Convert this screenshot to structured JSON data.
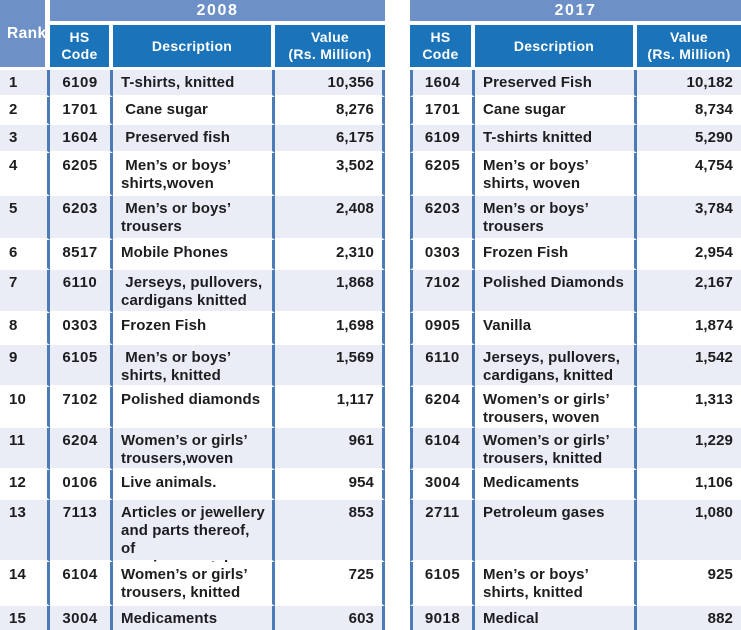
{
  "rank_header": "Rank",
  "ranks": [
    "1",
    "2",
    "3",
    "4",
    "5",
    "6",
    "7",
    "8",
    "9",
    "10",
    "11",
    "12",
    "13",
    "14",
    "15"
  ],
  "colors": {
    "year_band": "#6d90c7",
    "column_header": "#1b73b9",
    "row_stripe": "#eaedf6",
    "column_rule": "#4b7cb8",
    "header_text": "#ffffff",
    "body_text": "#1d1d20"
  },
  "tables": [
    {
      "year": "2008",
      "headers": {
        "hs": "HS\nCode",
        "desc": "Description",
        "value": "Value\n(Rs. Million)"
      },
      "rows": [
        {
          "hs": "6109",
          "desc": "T-shirts, knitted",
          "value": "10,356"
        },
        {
          "hs": "1701",
          "desc": " Cane sugar",
          "value": "8,276"
        },
        {
          "hs": "1604",
          "desc": " Preserved fish",
          "value": "6,175"
        },
        {
          "hs": "6205",
          "desc": " Men’s or boys’\nshirts,woven",
          "value": "3,502"
        },
        {
          "hs": "6203",
          "desc": " Men’s or boys’\ntrousers",
          "value": "2,408"
        },
        {
          "hs": "8517",
          "desc": "Mobile Phones",
          "value": "2,310"
        },
        {
          "hs": "6110",
          "desc": " Jerseys, pullovers,\ncardigans knitted",
          "value": "1,868"
        },
        {
          "hs": "0303",
          "desc": "Frozen Fish",
          "value": "1,698"
        },
        {
          "hs": "6105",
          "desc": " Men’s or boys’\nshirts, knitted",
          "value": "1,569"
        },
        {
          "hs": "7102",
          "desc": "Polished diamonds",
          "value": "1,117"
        },
        {
          "hs": "6204",
          "desc": "Women’s or girls’\ntrousers,woven",
          "value": "961"
        },
        {
          "hs": "0106",
          "desc": "Live animals.",
          "value": "954"
        },
        {
          "hs": "7113",
          "desc": "Articles or jewellery\nand parts thereof, of\nprecious metal",
          "value": "853"
        },
        {
          "hs": "6104",
          "desc": "Women’s or girls’\ntrousers, knitted",
          "value": "725"
        },
        {
          "hs": "3004",
          "desc": "Medicaments",
          "value": "603"
        }
      ]
    },
    {
      "year": "2017",
      "headers": {
        "hs": "HS\nCode",
        "desc": "Description",
        "value": "Value\n(Rs. Million)"
      },
      "rows": [
        {
          "hs": "1604",
          "desc": "Preserved Fish",
          "value": "10,182"
        },
        {
          "hs": "1701",
          "desc": "Cane sugar",
          "value": "8,734"
        },
        {
          "hs": "6109",
          "desc": "T-shirts knitted",
          "value": "5,290"
        },
        {
          "hs": "6205",
          "desc": "Men’s or boys’\nshirts, woven",
          "value": "4,754"
        },
        {
          "hs": "6203",
          "desc": "Men’s or boys’\ntrousers",
          "value": "3,784"
        },
        {
          "hs": "0303",
          "desc": "Frozen Fish",
          "value": "2,954"
        },
        {
          "hs": "7102",
          "desc": "Polished Diamonds",
          "value": "2,167"
        },
        {
          "hs": "0905",
          "desc": "Vanilla",
          "value": "1,874"
        },
        {
          "hs": "6110",
          "desc": "Jerseys, pullovers,\ncardigans, knitted",
          "value": "1,542"
        },
        {
          "hs": "6204",
          "desc": "Women’s or girls’\ntrousers, woven",
          "value": "1,313"
        },
        {
          "hs": "6104",
          "desc": "Women’s or girls’\ntrousers, knitted",
          "value": "1,229"
        },
        {
          "hs": "3004",
          "desc": "Medicaments",
          "value": "1,106"
        },
        {
          "hs": "2711",
          "desc": "Petroleum gases",
          "value": "1,080"
        },
        {
          "hs": "6105",
          "desc": "Men’s or boys’\nshirts, knitted",
          "value": "925"
        },
        {
          "hs": "9018",
          "desc": "Medical Instruments",
          "value": "882"
        }
      ]
    }
  ]
}
